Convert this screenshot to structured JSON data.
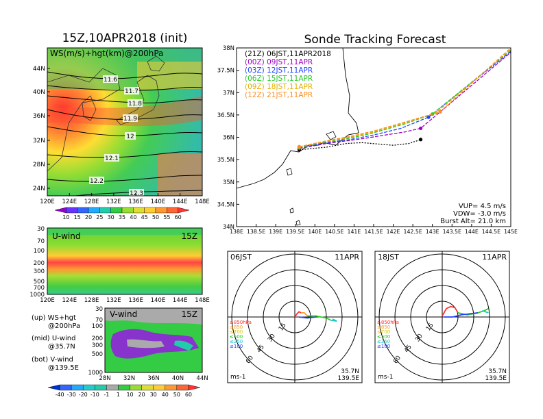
{
  "left_panel": {
    "title": "15Z,10APR2018 (init)",
    "map_label": "WS(m/s)+hgt(km)@200hPa",
    "lat_ticks": [
      "44N",
      "40N",
      "36N",
      "32N",
      "28N",
      "24N"
    ],
    "lon_ticks": [
      "120E",
      "124E",
      "128E",
      "132E",
      "136E",
      "140E",
      "144E",
      "148E"
    ],
    "contour_labels": [
      "11.6",
      "11.7",
      "11.8",
      "11.9",
      "12",
      "12.1",
      "12.2",
      "12.3"
    ],
    "ws_colorbar": [
      "10",
      "15",
      "20",
      "25",
      "30",
      "35",
      "40",
      "45",
      "50",
      "55",
      "60"
    ],
    "uwind_label": "U-wind",
    "uwind_time": "15Z",
    "pressure_ticks": [
      "30",
      "70",
      "100",
      "200",
      "300",
      "500",
      "700",
      "1000"
    ],
    "vwind_label": "V-wind",
    "vwind_time": "15Z",
    "vwind_lat_ticks": [
      "28N",
      "32N",
      "36N",
      "40N",
      "44N"
    ],
    "vwind_pressure_ticks": [
      "30",
      "70",
      "100",
      "200",
      "300",
      "500",
      "1000"
    ],
    "legend_lines": [
      {
        "a": "(up) WS+hgt",
        "b": "@200hPa"
      },
      {
        "a": "(mid) U-wind",
        "b": "@35.7N"
      },
      {
        "a": "(bot) V-wind",
        "b": "@139.5E"
      }
    ],
    "wind_colorbar": [
      "-40",
      "-30",
      "-20",
      "-10",
      "-1",
      "1",
      "10",
      "20",
      "30",
      "40",
      "50",
      "60"
    ]
  },
  "right_panel": {
    "title": "Sonde Tracking Forecast",
    "lat_ticks": [
      "38N",
      "37.5N",
      "37N",
      "36.5N",
      "36N",
      "35.5N",
      "35N",
      "34.5N",
      "34N"
    ],
    "lon_ticks": [
      "138E",
      "138.5E",
      "139E",
      "139.5E",
      "140E",
      "140.5E",
      "141E",
      "141.5E",
      "142E",
      "142.5E",
      "143E",
      "143.5E",
      "144E",
      "144.5E",
      "145E"
    ],
    "info": {
      "vup": "VUP=  4.5 m/s",
      "vdw": "VDW= -3.0 m/s",
      "burst": "Burst Alt= 21.0 km"
    },
    "hodo_left": {
      "time": "06JST",
      "date": "11APR",
      "lat": "35.7N",
      "lon": "139.5E",
      "unit": "ms-1"
    },
    "hodo_right": {
      "time": "18JST",
      "date": "11APR",
      "lat": "35.7N",
      "lon": "139.5E",
      "unit": "ms-1"
    },
    "ring_labels": [
      "15",
      "30",
      "45",
      "60"
    ],
    "hodo_levels": [
      {
        "label": "≥850hPa",
        "color": "#ff3030"
      },
      {
        "label": "≤850",
        "color": "#ff9a20"
      },
      {
        "label": "≤700",
        "color": "#d8c800"
      },
      {
        "label": "≤500",
        "color": "#22cc22"
      },
      {
        "label": "≤250",
        "color": "#18c8c8"
      },
      {
        "label": "≤100",
        "color": "#2040ff"
      }
    ]
  },
  "chart_data": [
    {
      "type": "line",
      "title": "Sonde Tracking Forecast",
      "xlim": [
        138,
        145
      ],
      "ylim": [
        34,
        38
      ],
      "series": [
        {
          "name": "(21Z)  06JST,11APR2018",
          "color": "#000000",
          "lon": [
            139.6,
            140.3,
            140.8,
            141.2,
            141.6,
            142.0,
            142.4,
            142.7
          ],
          "lat": [
            35.72,
            35.78,
            35.86,
            35.88,
            35.85,
            35.82,
            35.86,
            35.95
          ]
        },
        {
          "name": "(00Z)  09JST,11APR",
          "color": "#a000c0",
          "lon": [
            139.6,
            140.3,
            140.9,
            141.3,
            141.8,
            142.3,
            142.7,
            145.0
          ],
          "lat": [
            35.75,
            35.86,
            35.93,
            35.98,
            36.05,
            36.12,
            36.2,
            37.9
          ]
        },
        {
          "name": "(03Z)  12JST,11APR",
          "color": "#2040ff",
          "lon": [
            139.6,
            140.3,
            140.9,
            141.5,
            142.2,
            142.9,
            145.0
          ],
          "lat": [
            35.76,
            35.88,
            35.95,
            36.05,
            36.2,
            36.45,
            37.92
          ]
        },
        {
          "name": "(06Z)  15JST,11APR",
          "color": "#22cc22",
          "lon": [
            139.6,
            140.3,
            140.9,
            141.5,
            142.3,
            143.0,
            145.0
          ],
          "lat": [
            35.77,
            35.9,
            35.98,
            36.1,
            36.3,
            36.52,
            37.95
          ]
        },
        {
          "name": "(09Z)  18JST,11APR",
          "color": "#e0b000",
          "lon": [
            139.6,
            140.3,
            140.9,
            141.5,
            142.3,
            143.1,
            145.0
          ],
          "lat": [
            35.78,
            35.91,
            36.0,
            36.12,
            36.32,
            36.55,
            37.97
          ]
        },
        {
          "name": "(12Z)  21JST,11APR",
          "color": "#ff8c20",
          "lon": [
            139.6,
            140.3,
            140.9,
            141.5,
            142.3,
            143.2,
            145.0
          ],
          "lat": [
            35.79,
            35.92,
            36.02,
            36.14,
            36.34,
            36.57,
            38.0
          ]
        }
      ]
    },
    {
      "type": "line",
      "title": "06JST hodograph",
      "series": [
        {
          "name": "≥850hPa",
          "color": "#ff3030",
          "u": [
            0,
            2,
            4,
            6
          ],
          "v": [
            0,
            3,
            5,
            4
          ]
        },
        {
          "name": "≤850",
          "color": "#ff9a20",
          "u": [
            6,
            9,
            12
          ],
          "v": [
            4,
            4,
            1
          ]
        },
        {
          "name": "≤500",
          "color": "#22cc22",
          "u": [
            12,
            20,
            30,
            34
          ],
          "v": [
            1,
            1,
            -1,
            -3
          ]
        },
        {
          "name": "≤250",
          "color": "#18c8c8",
          "u": [
            34,
            40,
            36
          ],
          "v": [
            -3,
            -4,
            -2
          ]
        },
        {
          "name": "≤100",
          "color": "#2040ff",
          "u": [
            4,
            12,
            20
          ],
          "v": [
            0,
            -1,
            0
          ]
        }
      ]
    },
    {
      "type": "line",
      "title": "18JST hodograph",
      "series": [
        {
          "name": "≥850hPa",
          "color": "#ff3030",
          "u": [
            0,
            4,
            8,
            12,
            15
          ],
          "v": [
            1,
            8,
            10,
            9,
            4
          ]
        },
        {
          "name": "≤500",
          "color": "#22cc22",
          "u": [
            15,
            24,
            34,
            40,
            44
          ],
          "v": [
            4,
            2,
            4,
            6,
            8
          ]
        },
        {
          "name": "≤250",
          "color": "#18c8c8",
          "u": [
            38,
            44
          ],
          "v": [
            6,
            4
          ]
        },
        {
          "name": "≤100",
          "color": "#2040ff",
          "u": [
            2,
            10,
            18,
            26,
            34
          ],
          "v": [
            0,
            0,
            2,
            3,
            4
          ]
        }
      ]
    }
  ]
}
